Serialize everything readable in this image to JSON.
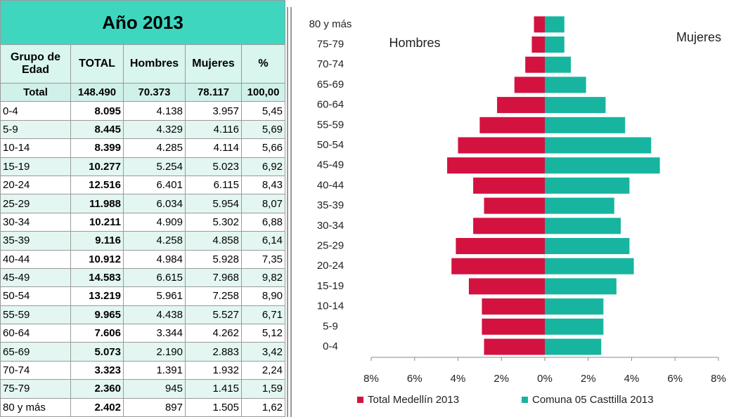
{
  "table": {
    "title": "Año 2013",
    "headers": [
      "Grupo de Edad",
      "TOTAL",
      "Hombres",
      "Mujeres",
      "%"
    ],
    "rows": [
      [
        "Total",
        "148.490",
        "70.373",
        "78.117",
        "100,00"
      ],
      [
        "0-4",
        "8.095",
        "4.138",
        "3.957",
        "5,45"
      ],
      [
        "5-9",
        "8.445",
        "4.329",
        "4.116",
        "5,69"
      ],
      [
        "10-14",
        "8.399",
        "4.285",
        "4.114",
        "5,66"
      ],
      [
        "15-19",
        "10.277",
        "5.254",
        "5.023",
        "6,92"
      ],
      [
        "20-24",
        "12.516",
        "6.401",
        "6.115",
        "8,43"
      ],
      [
        "25-29",
        "11.988",
        "6.034",
        "5.954",
        "8,07"
      ],
      [
        "30-34",
        "10.211",
        "4.909",
        "5.302",
        "6,88"
      ],
      [
        "35-39",
        "9.116",
        "4.258",
        "4.858",
        "6,14"
      ],
      [
        "40-44",
        "10.912",
        "4.984",
        "5.928",
        "7,35"
      ],
      [
        "45-49",
        "14.583",
        "6.615",
        "7.968",
        "9,82"
      ],
      [
        "50-54",
        "13.219",
        "5.961",
        "7.258",
        "8,90"
      ],
      [
        "55-59",
        "9.965",
        "4.438",
        "5.527",
        "6,71"
      ],
      [
        "60-64",
        "7.606",
        "3.344",
        "4.262",
        "5,12"
      ],
      [
        "65-69",
        "5.073",
        "2.190",
        "2.883",
        "3,42"
      ],
      [
        "70-74",
        "3.323",
        "1.391",
        "1.932",
        "2,24"
      ],
      [
        "75-79",
        "2.360",
        "945",
        "1.415",
        "1,59"
      ],
      [
        "80 y más",
        "2.402",
        "897",
        "1.505",
        "1,62"
      ]
    ]
  },
  "chart_data": {
    "type": "pyramid",
    "left_label": "Hombres",
    "right_label": "Mujeres",
    "categories": [
      "0-4",
      "5-9",
      "10-14",
      "15-19",
      "20-24",
      "25-29",
      "30-34",
      "35-39",
      "40-44",
      "45-49",
      "50-54",
      "55-59",
      "60-64",
      "65-69",
      "70-74",
      "75-79",
      "80 y más"
    ],
    "series": [
      {
        "name": "Total Medellín 2013",
        "color": "#d3123f",
        "values": [
          -2.8,
          -2.9,
          -2.9,
          -3.5,
          -4.3,
          -4.1,
          -3.3,
          -2.8,
          -3.3,
          -4.5,
          -4.0,
          -3.0,
          -2.2,
          -1.4,
          -0.9,
          -0.6,
          -0.5
        ]
      },
      {
        "name": "Comuna 05 Casttilla 2013",
        "color": "#17b5a0",
        "values": [
          2.6,
          2.7,
          2.7,
          3.3,
          4.1,
          3.9,
          3.5,
          3.2,
          3.9,
          5.3,
          4.9,
          3.7,
          2.8,
          1.9,
          1.2,
          0.9,
          0.9
        ]
      }
    ],
    "xlim": [
      -8,
      8
    ],
    "xticks": [
      {
        "value": -8,
        "label": "8%"
      },
      {
        "value": -6,
        "label": "6%"
      },
      {
        "value": -4,
        "label": "4%"
      },
      {
        "value": -2,
        "label": "2%"
      },
      {
        "value": 0,
        "label": "0%"
      },
      {
        "value": 2,
        "label": "2%"
      },
      {
        "value": 4,
        "label": "4%"
      },
      {
        "value": 6,
        "label": "6%"
      },
      {
        "value": 8,
        "label": "8%"
      }
    ],
    "legend": "bottom"
  }
}
